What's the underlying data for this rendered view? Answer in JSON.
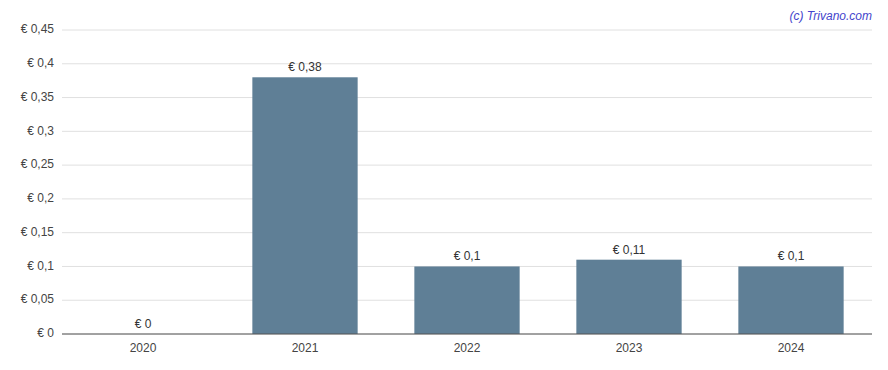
{
  "chart_data": {
    "type": "bar",
    "categories": [
      "2020",
      "2021",
      "2022",
      "2023",
      "2024"
    ],
    "values": [
      0.0,
      0.38,
      0.1,
      0.11,
      0.1
    ],
    "value_labels": [
      "€ 0",
      "€ 0,38",
      "€ 0,1",
      "€ 0,11",
      "€ 0,1"
    ],
    "data_labels": true,
    "color": "#5f7f96",
    "ylim": [
      0,
      0.45
    ],
    "yticks": [
      {
        "value": 0,
        "label": "€ 0"
      },
      {
        "value": 0.05,
        "label": "€ 0,05"
      },
      {
        "value": 0.1,
        "label": "€ 0,1"
      },
      {
        "value": 0.15,
        "label": "€ 0,15"
      },
      {
        "value": 0.2,
        "label": "€ 0,2"
      },
      {
        "value": 0.25,
        "label": "€ 0,25"
      },
      {
        "value": 0.3,
        "label": "€ 0,3"
      },
      {
        "value": 0.35,
        "label": "€ 0,35"
      },
      {
        "value": 0.4,
        "label": "€ 0,4"
      },
      {
        "value": 0.45,
        "label": "€ 0,45"
      }
    ],
    "grid": true,
    "annotations": [
      {
        "text": "(c) Trivano.com",
        "color": "#4444cc"
      }
    ]
  }
}
